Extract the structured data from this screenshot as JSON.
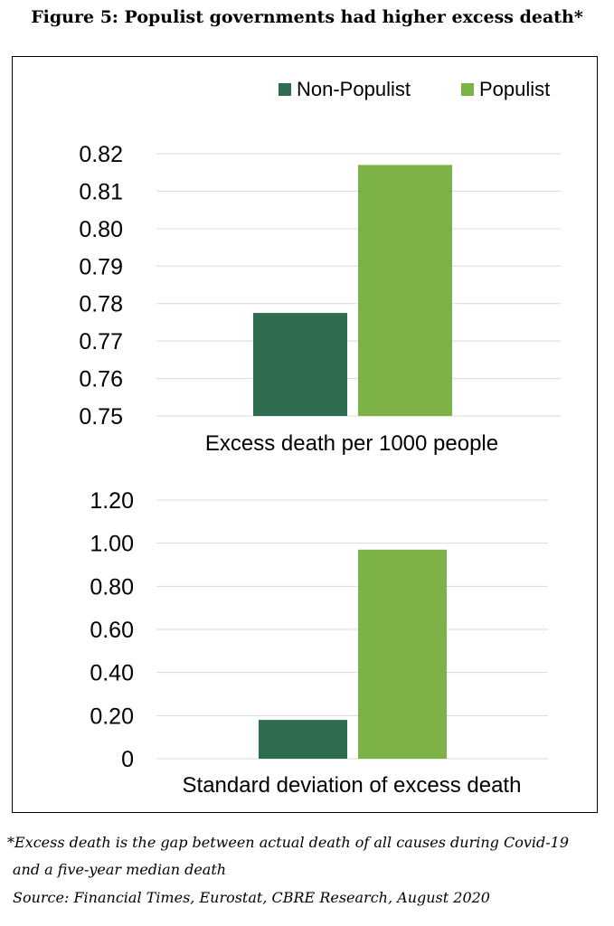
{
  "figure": {
    "title": "Figure 5: Populist governments had higher excess death*",
    "footnote_line1": "*Excess death is the gap between actual death of all causes during Covid-19",
    "footnote_line2": "and a five-year median death",
    "source": "Source: Financial Times, Eurostat, CBRE Research, August 2020"
  },
  "colors": {
    "non_populist": "#2e6b4f",
    "populist": "#7db346",
    "grid": "#d9d9d9"
  },
  "legend": [
    {
      "name": "Non-Populist",
      "color": "#2e6b4f"
    },
    {
      "name": "Populist",
      "color": "#7db346"
    }
  ],
  "chart_data": [
    {
      "type": "bar",
      "categories": [
        "Non-Populist",
        "Populist"
      ],
      "values": [
        0.7775,
        0.817
      ],
      "xlabel": "Excess death per 1000 people",
      "ylim": [
        0.75,
        0.82
      ],
      "yticks": [
        "0.75",
        "0.76",
        "0.77",
        "0.78",
        "0.79",
        "0.80",
        "0.81",
        "0.82"
      ],
      "grid": true,
      "legend": "top-right"
    },
    {
      "type": "bar",
      "categories": [
        "Non-Populist",
        "Populist"
      ],
      "values": [
        0.18,
        0.97
      ],
      "xlabel": "Standard deviation of excess death",
      "ylim": [
        0,
        1.2
      ],
      "yticks": [
        "0",
        "0.20",
        "0.40",
        "0.60",
        "0.80",
        "1.00",
        "1.20"
      ],
      "grid": true
    }
  ]
}
